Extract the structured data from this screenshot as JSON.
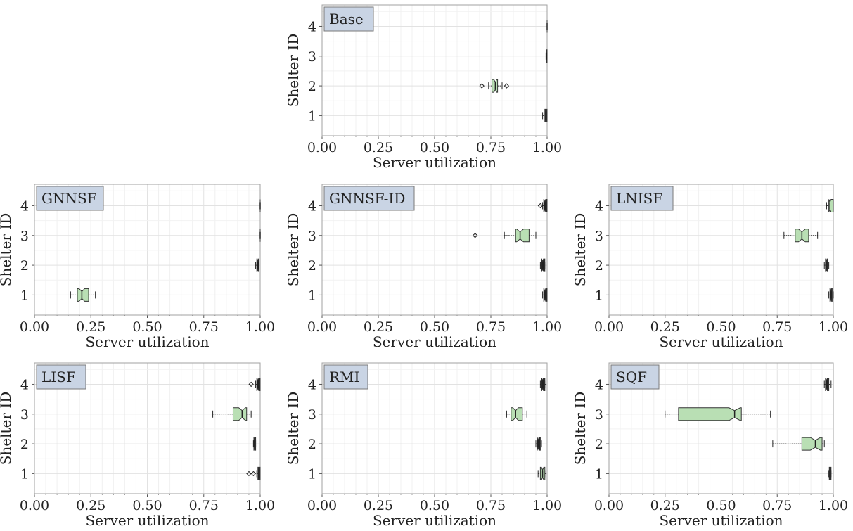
{
  "chart_data": [
    {
      "type": "box",
      "title": "Base",
      "xlabel": "Server utilization",
      "ylabel": "Shelter ID",
      "xlim": [
        0,
        1
      ],
      "xticks": [
        "0.00",
        "0.25",
        "0.50",
        "0.75",
        "1.00"
      ],
      "categories": [
        "1",
        "2",
        "3",
        "4"
      ],
      "boxes": [
        {
          "id": "1",
          "whislo": 0.98,
          "q1": 0.99,
          "med": 0.995,
          "q3": 1.0,
          "whishi": 1.0,
          "fliers": []
        },
        {
          "id": "2",
          "whislo": 0.74,
          "q1": 0.755,
          "med": 0.77,
          "q3": 0.78,
          "whishi": 0.8,
          "fliers": [
            0.71,
            0.82
          ]
        },
        {
          "id": "3",
          "whislo": 0.995,
          "q1": 0.997,
          "med": 0.998,
          "q3": 1.0,
          "whishi": 1.0,
          "fliers": []
        },
        {
          "id": "4",
          "whislo": 1.0,
          "q1": 1.0,
          "med": 1.0,
          "q3": 1.0,
          "whishi": 1.0,
          "fliers": []
        }
      ]
    },
    {
      "type": "box",
      "title": "GNNSF",
      "xlabel": "Server utilization",
      "ylabel": "Shelter ID",
      "xlim": [
        0,
        1
      ],
      "xticks": [
        "0.00",
        "0.25",
        "0.50",
        "0.75",
        "1.00"
      ],
      "categories": [
        "1",
        "2",
        "3",
        "4"
      ],
      "boxes": [
        {
          "id": "1",
          "whislo": 0.16,
          "q1": 0.19,
          "med": 0.21,
          "q3": 0.24,
          "whishi": 0.27,
          "fliers": []
        },
        {
          "id": "2",
          "whislo": 0.98,
          "q1": 0.985,
          "med": 0.99,
          "q3": 0.995,
          "whishi": 0.995,
          "fliers": []
        },
        {
          "id": "3",
          "whislo": 1.0,
          "q1": 1.0,
          "med": 1.0,
          "q3": 1.0,
          "whishi": 1.0,
          "fliers": []
        },
        {
          "id": "4",
          "whislo": 1.0,
          "q1": 1.0,
          "med": 1.0,
          "q3": 1.0,
          "whishi": 1.0,
          "fliers": []
        }
      ]
    },
    {
      "type": "box",
      "title": "GNNSF-ID",
      "xlabel": "Server utilization",
      "ylabel": "Shelter ID",
      "xlim": [
        0,
        1
      ],
      "xticks": [
        "0.00",
        "0.25",
        "0.50",
        "0.75",
        "1.00"
      ],
      "categories": [
        "1",
        "2",
        "3",
        "4"
      ],
      "boxes": [
        {
          "id": "1",
          "whislo": 0.98,
          "q1": 0.985,
          "med": 0.99,
          "q3": 1.0,
          "whishi": 1.0,
          "fliers": []
        },
        {
          "id": "2",
          "whislo": 0.97,
          "q1": 0.975,
          "med": 0.98,
          "q3": 0.99,
          "whishi": 0.99,
          "fliers": []
        },
        {
          "id": "3",
          "whislo": 0.81,
          "q1": 0.86,
          "med": 0.88,
          "q3": 0.92,
          "whishi": 0.95,
          "fliers": [
            0.68
          ]
        },
        {
          "id": "4",
          "whislo": 0.98,
          "q1": 0.985,
          "med": 0.99,
          "q3": 1.0,
          "whishi": 1.0,
          "fliers": [
            0.97
          ]
        }
      ]
    },
    {
      "type": "box",
      "title": "LNISF",
      "xlabel": "Server utilization",
      "ylabel": "Shelter ID",
      "xlim": [
        0,
        1
      ],
      "xticks": [
        "0.00",
        "0.25",
        "0.50",
        "0.75",
        "1.00"
      ],
      "categories": [
        "1",
        "2",
        "3",
        "4"
      ],
      "boxes": [
        {
          "id": "1",
          "whislo": 0.98,
          "q1": 0.985,
          "med": 0.99,
          "q3": 0.995,
          "whishi": 1.0,
          "fliers": []
        },
        {
          "id": "2",
          "whislo": 0.96,
          "q1": 0.965,
          "med": 0.97,
          "q3": 0.975,
          "whishi": 0.98,
          "fliers": []
        },
        {
          "id": "3",
          "whislo": 0.78,
          "q1": 0.83,
          "med": 0.86,
          "q3": 0.89,
          "whishi": 0.93,
          "fliers": []
        },
        {
          "id": "4",
          "whislo": 0.97,
          "q1": 0.98,
          "med": 0.985,
          "q3": 1.0,
          "whishi": 1.0,
          "fliers": []
        }
      ]
    },
    {
      "type": "box",
      "title": "LISF",
      "xlabel": "Server utilization",
      "ylabel": "Shelter ID",
      "xlim": [
        0,
        1
      ],
      "xticks": [
        "0.00",
        "0.25",
        "0.50",
        "0.75",
        "1.00"
      ],
      "categories": [
        "1",
        "2",
        "3",
        "4"
      ],
      "boxes": [
        {
          "id": "1",
          "whislo": 0.985,
          "q1": 0.99,
          "med": 0.995,
          "q3": 1.0,
          "whishi": 1.0,
          "fliers": [
            0.95,
            0.97
          ]
        },
        {
          "id": "2",
          "whislo": 0.97,
          "q1": 0.972,
          "med": 0.975,
          "q3": 0.98,
          "whishi": 0.98,
          "fliers": []
        },
        {
          "id": "3",
          "whislo": 0.79,
          "q1": 0.88,
          "med": 0.92,
          "q3": 0.94,
          "whishi": 0.96,
          "fliers": []
        },
        {
          "id": "4",
          "whislo": 0.98,
          "q1": 0.985,
          "med": 0.99,
          "q3": 1.0,
          "whishi": 1.0,
          "fliers": [
            0.96
          ]
        }
      ]
    },
    {
      "type": "box",
      "title": "RMI",
      "xlabel": "Server utilization",
      "ylabel": "Shelter ID",
      "xlim": [
        0,
        1
      ],
      "xticks": [
        "0.00",
        "0.25",
        "0.50",
        "0.75",
        "1.00"
      ],
      "categories": [
        "1",
        "2",
        "3",
        "4"
      ],
      "boxes": [
        {
          "id": "1",
          "whislo": 0.96,
          "q1": 0.97,
          "med": 0.98,
          "q3": 0.99,
          "whishi": 0.995,
          "fliers": []
        },
        {
          "id": "2",
          "whislo": 0.95,
          "q1": 0.955,
          "med": 0.96,
          "q3": 0.97,
          "whishi": 0.975,
          "fliers": []
        },
        {
          "id": "3",
          "whislo": 0.82,
          "q1": 0.84,
          "med": 0.86,
          "q3": 0.89,
          "whishi": 0.91,
          "fliers": []
        },
        {
          "id": "4",
          "whislo": 0.97,
          "q1": 0.975,
          "med": 0.98,
          "q3": 0.99,
          "whishi": 0.995,
          "fliers": []
        }
      ]
    },
    {
      "type": "box",
      "title": "SQF",
      "xlabel": "Server utilization",
      "ylabel": "Shelter ID",
      "xlim": [
        0,
        1
      ],
      "xticks": [
        "0.00",
        "0.25",
        "0.50",
        "0.75",
        "1.00"
      ],
      "categories": [
        "1",
        "2",
        "3",
        "4"
      ],
      "boxes": [
        {
          "id": "1",
          "whislo": 0.98,
          "q1": 0.982,
          "med": 0.985,
          "q3": 0.99,
          "whishi": 0.99,
          "fliers": []
        },
        {
          "id": "2",
          "whislo": 0.73,
          "q1": 0.86,
          "med": 0.92,
          "q3": 0.95,
          "whishi": 0.96,
          "fliers": []
        },
        {
          "id": "3",
          "whislo": 0.25,
          "q1": 0.31,
          "med": 0.56,
          "q3": 0.59,
          "whishi": 0.72,
          "fliers": []
        },
        {
          "id": "4",
          "whislo": 0.96,
          "q1": 0.965,
          "med": 0.97,
          "q3": 0.98,
          "whishi": 0.99,
          "fliers": []
        }
      ]
    }
  ]
}
